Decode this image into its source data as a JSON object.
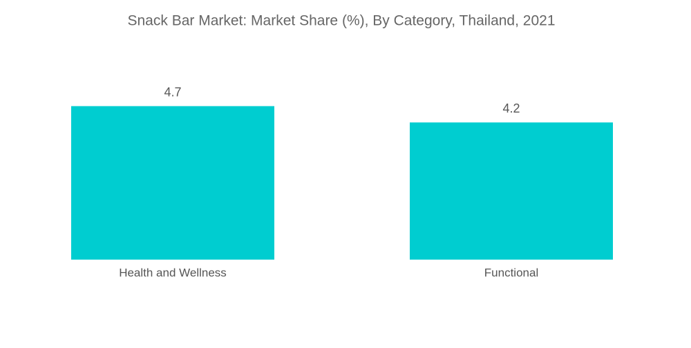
{
  "chart_data": {
    "type": "bar",
    "title": "Snack Bar Market: Market Share (%), By Category, Thailand, 2021",
    "categories": [
      "Health and Wellness",
      "Functional"
    ],
    "values": [
      4.7,
      4.2
    ],
    "color": "#00cdd0"
  }
}
